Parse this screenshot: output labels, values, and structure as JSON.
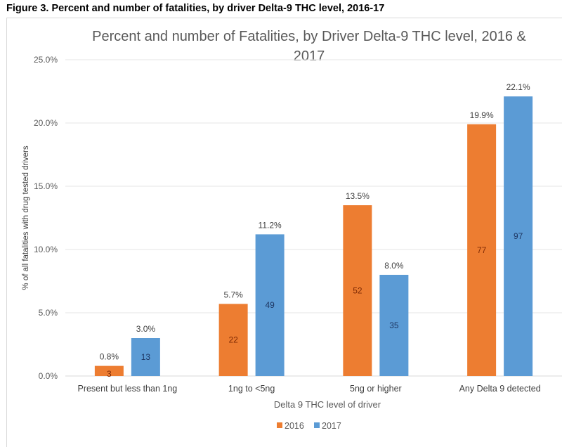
{
  "figure_caption": "Figure 3. Percent and number of fatalities, by driver Delta-9 THC level, 2016-17",
  "chart_data": {
    "type": "bar",
    "title_lines": [
      "Percent and number of Fatalities, by Driver Delta-9 THC level, 2016 &",
      "2017"
    ],
    "xlabel": "Delta 9 THC level of driver",
    "ylabel": "% of all fatalities with drug tested drivers",
    "ylim": [
      0,
      25
    ],
    "yticks": [
      0,
      5,
      10,
      15,
      20,
      25
    ],
    "ytick_labels": [
      "0.0%",
      "5.0%",
      "10.0%",
      "15.0%",
      "20.0%",
      "25.0%"
    ],
    "grid": true,
    "legend_position": "bottom",
    "categories": [
      "Present but less than 1ng",
      "1ng to <5ng",
      "5ng or higher",
      "Any Delta 9 detected"
    ],
    "series": [
      {
        "name": "2016",
        "color": "#ed7d31",
        "inner_label_color": "#7f2a04",
        "values": [
          0.8,
          5.7,
          13.5,
          19.9
        ],
        "value_labels": [
          "0.8%",
          "5.7%",
          "13.5%",
          "19.9%"
        ],
        "counts": [
          3,
          22,
          52,
          77
        ]
      },
      {
        "name": "2017",
        "color": "#5b9bd5",
        "inner_label_color": "#1f3864",
        "values": [
          3.0,
          11.2,
          8.0,
          22.1
        ],
        "value_labels": [
          "3.0%",
          "11.2%",
          "8.0%",
          "22.1%"
        ],
        "counts": [
          13,
          49,
          35,
          97
        ]
      }
    ]
  }
}
